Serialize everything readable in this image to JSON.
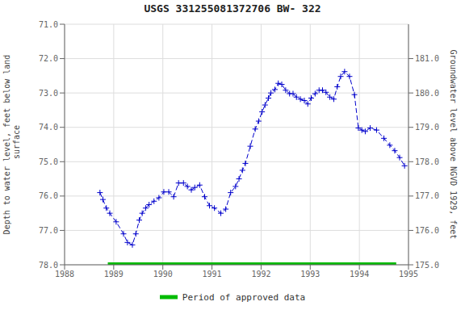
{
  "chart_data": {
    "type": "line",
    "title": "USGS 331255081372706 BW- 322",
    "y_label": "Depth to water level, feet below land\n surface",
    "y2_label": "Groundwater level above NGVD 1929, feet",
    "x": [
      1988.72,
      1988.78,
      1988.85,
      1988.92,
      1989.05,
      1989.2,
      1989.28,
      1989.38,
      1989.45,
      1989.52,
      1989.58,
      1989.65,
      1989.72,
      1989.82,
      1989.92,
      1990.02,
      1990.12,
      1990.22,
      1990.32,
      1990.42,
      1990.5,
      1990.58,
      1990.65,
      1990.75,
      1990.85,
      1990.95,
      1991.05,
      1991.18,
      1991.28,
      1991.38,
      1991.48,
      1991.55,
      1991.62,
      1991.68,
      1991.78,
      1991.88,
      1991.95,
      1992.02,
      1992.08,
      1992.15,
      1992.2,
      1992.28,
      1992.35,
      1992.42,
      1992.5,
      1992.58,
      1992.65,
      1992.72,
      1992.8,
      1992.88,
      1992.95,
      1993.02,
      1993.1,
      1993.18,
      1993.25,
      1993.32,
      1993.4,
      1993.48,
      1993.55,
      1993.62,
      1993.7,
      1993.8,
      1993.9,
      1993.98,
      1994.05,
      1994.12,
      1994.22,
      1994.35,
      1994.5,
      1994.62,
      1994.72,
      1994.82,
      1994.92
    ],
    "series": [
      {
        "color": "#0000CC",
        "marker": "plus",
        "line_style": "dashed",
        "values": [
          75.9,
          76.1,
          76.35,
          76.5,
          76.75,
          77.1,
          77.35,
          77.42,
          77.1,
          76.7,
          76.5,
          76.35,
          76.25,
          76.15,
          76.05,
          75.88,
          75.88,
          76.02,
          75.62,
          75.62,
          75.72,
          75.82,
          75.75,
          75.68,
          76.02,
          76.28,
          76.35,
          76.5,
          76.38,
          75.9,
          75.72,
          75.5,
          75.25,
          75.05,
          74.55,
          74.05,
          73.82,
          73.55,
          73.35,
          73.15,
          73.0,
          72.9,
          72.72,
          72.75,
          72.92,
          73.02,
          73.02,
          73.12,
          73.18,
          73.22,
          73.32,
          73.15,
          73.02,
          72.92,
          72.92,
          72.98,
          73.12,
          73.18,
          72.82,
          72.52,
          72.38,
          72.52,
          73.05,
          74.02,
          74.08,
          74.12,
          74.02,
          74.08,
          74.32,
          74.52,
          74.68,
          74.88,
          75.12
        ]
      },
      {
        "name": "Period of approved data",
        "color": "#00bb00",
        "line_style": "solid",
        "x": [
          1988.88,
          1994.75
        ],
        "values": [
          78.0,
          78.0
        ]
      }
    ],
    "xlim": [
      1988,
      1995
    ],
    "xticks": [
      1988,
      1989,
      1990,
      1991,
      1992,
      1993,
      1994,
      1995
    ],
    "ylim": [
      78.0,
      71.0
    ],
    "yticks": [
      {
        "value": 71.0,
        "label": "71.0"
      },
      {
        "value": 72.0,
        "label": "72.0"
      },
      {
        "value": 73.0,
        "label": "73.0"
      },
      {
        "value": 74.0,
        "label": "74.0"
      },
      {
        "value": 75.0,
        "label": "75.0"
      },
      {
        "value": 76.0,
        "label": "76.0"
      },
      {
        "value": 77.0,
        "label": "77.0"
      },
      {
        "value": 78.0,
        "label": "78.0"
      }
    ],
    "y2lim": [
      175.0,
      182.0
    ],
    "y2ticks": [
      {
        "value": 175.0,
        "label": "175.0"
      },
      {
        "value": 176.0,
        "label": "176.0"
      },
      {
        "value": 177.0,
        "label": "177.0"
      },
      {
        "value": 178.0,
        "label": "178.0"
      },
      {
        "value": 179.0,
        "label": "179.0"
      },
      {
        "value": 180.0,
        "label": "180.0"
      },
      {
        "value": 181.0,
        "label": "181.0"
      }
    ],
    "grid": true,
    "legend": "bottom"
  }
}
